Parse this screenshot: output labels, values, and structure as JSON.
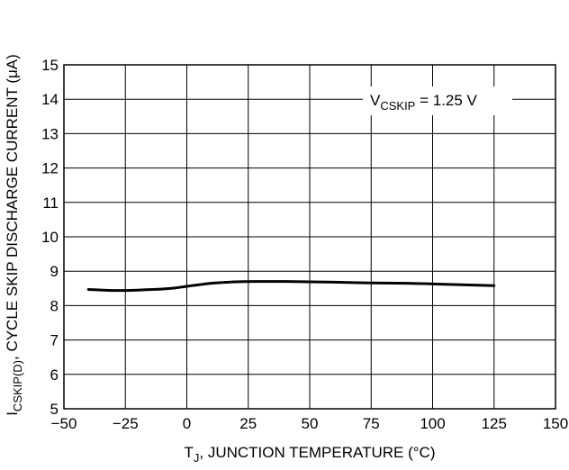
{
  "chart_data": {
    "type": "line",
    "xlabel": "T",
    "xlabel_sub": "J",
    "xlabel_rest": ", JUNCTION TEMPERATURE (°C)",
    "ylabel": "I",
    "ylabel_sub": "CSKIP(D)",
    "ylabel_rest": ", CYCLE SKIP DISCHARGE CURRENT (μA)",
    "xlim": [
      -50,
      150
    ],
    "ylim": [
      5,
      15
    ],
    "x_ticks": [
      -50,
      -25,
      0,
      25,
      50,
      75,
      100,
      125,
      150
    ],
    "x_tick_labels": [
      "−50",
      "−25",
      "0",
      "25",
      "50",
      "75",
      "100",
      "125",
      "150"
    ],
    "y_ticks": [
      5,
      6,
      7,
      8,
      9,
      10,
      11,
      12,
      13,
      14,
      15
    ],
    "y_tick_labels": [
      "5",
      "6",
      "7",
      "8",
      "9",
      "10",
      "11",
      "12",
      "13",
      "14",
      "15"
    ],
    "grid": true,
    "annotation": {
      "main": "V",
      "sub": "CSKIP",
      "rest": " = 1.25 V"
    },
    "series": [
      {
        "color": "#000000",
        "x": [
          -40,
          -30,
          -25,
          -20,
          -10,
          -5,
          0,
          10,
          20,
          30,
          40,
          50,
          60,
          75,
          90,
          100,
          110,
          125
        ],
        "y": [
          8.47,
          8.44,
          8.44,
          8.45,
          8.48,
          8.51,
          8.56,
          8.65,
          8.69,
          8.7,
          8.7,
          8.69,
          8.68,
          8.66,
          8.65,
          8.63,
          8.61,
          8.58
        ]
      }
    ]
  }
}
